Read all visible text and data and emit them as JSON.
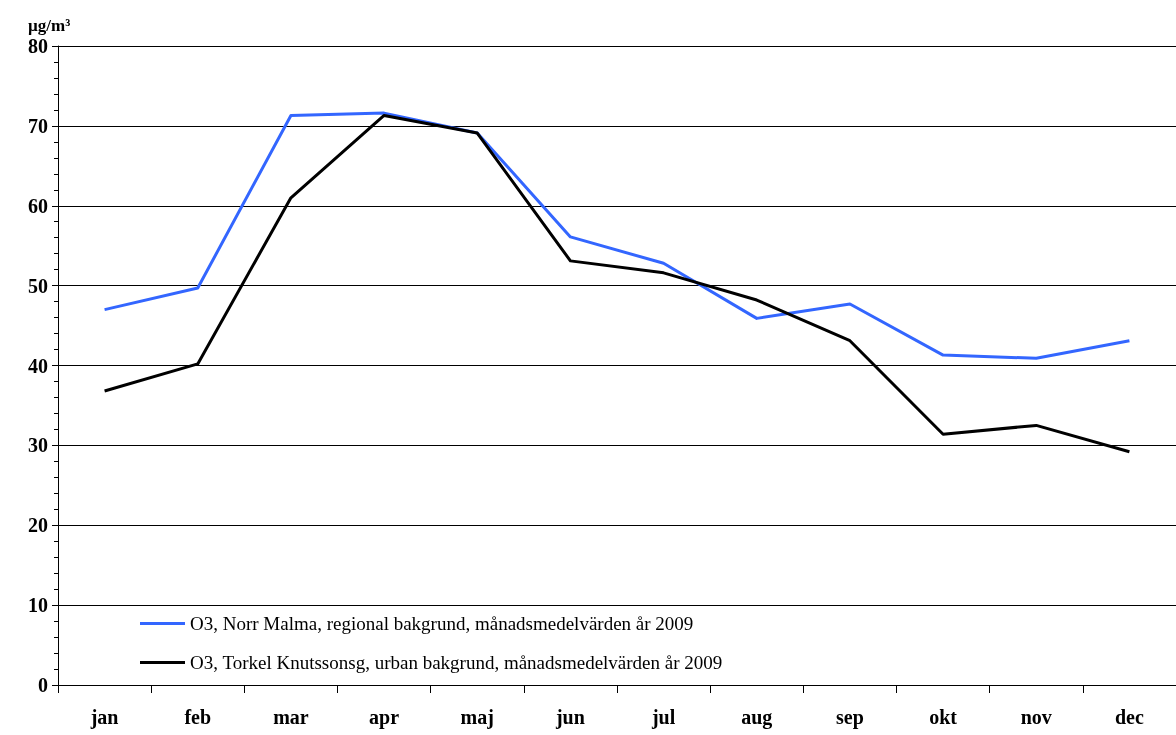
{
  "chart_data": {
    "type": "line",
    "ylabel": "µg/m³",
    "categories": [
      "jan",
      "feb",
      "mar",
      "apr",
      "maj",
      "jun",
      "jul",
      "aug",
      "sep",
      "okt",
      "nov",
      "dec"
    ],
    "series": [
      {
        "name": "O3, Norr Malma, regional bakgrund, månadsmedelvärden år 2009",
        "color": "#3366ff",
        "values": [
          47,
          49.7,
          71.3,
          71.6,
          69.1,
          56.1,
          52.8,
          45.9,
          47.7,
          41.3,
          40.9,
          43.1
        ]
      },
      {
        "name": "O3, Torkel Knutssonsg, urban bakgrund, månadsmedelvärden år 2009",
        "color": "#000000",
        "values": [
          36.8,
          40.2,
          61,
          71.3,
          69.1,
          53.1,
          51.6,
          48.2,
          43.1,
          31.4,
          32.5,
          29.2
        ]
      }
    ],
    "ylim": [
      0,
      80
    ],
    "yticks": [
      0,
      10,
      20,
      30,
      40,
      50,
      60,
      70,
      80
    ],
    "grid": "y",
    "legend": "bottom",
    "marker": "none",
    "line_style": "solid"
  }
}
